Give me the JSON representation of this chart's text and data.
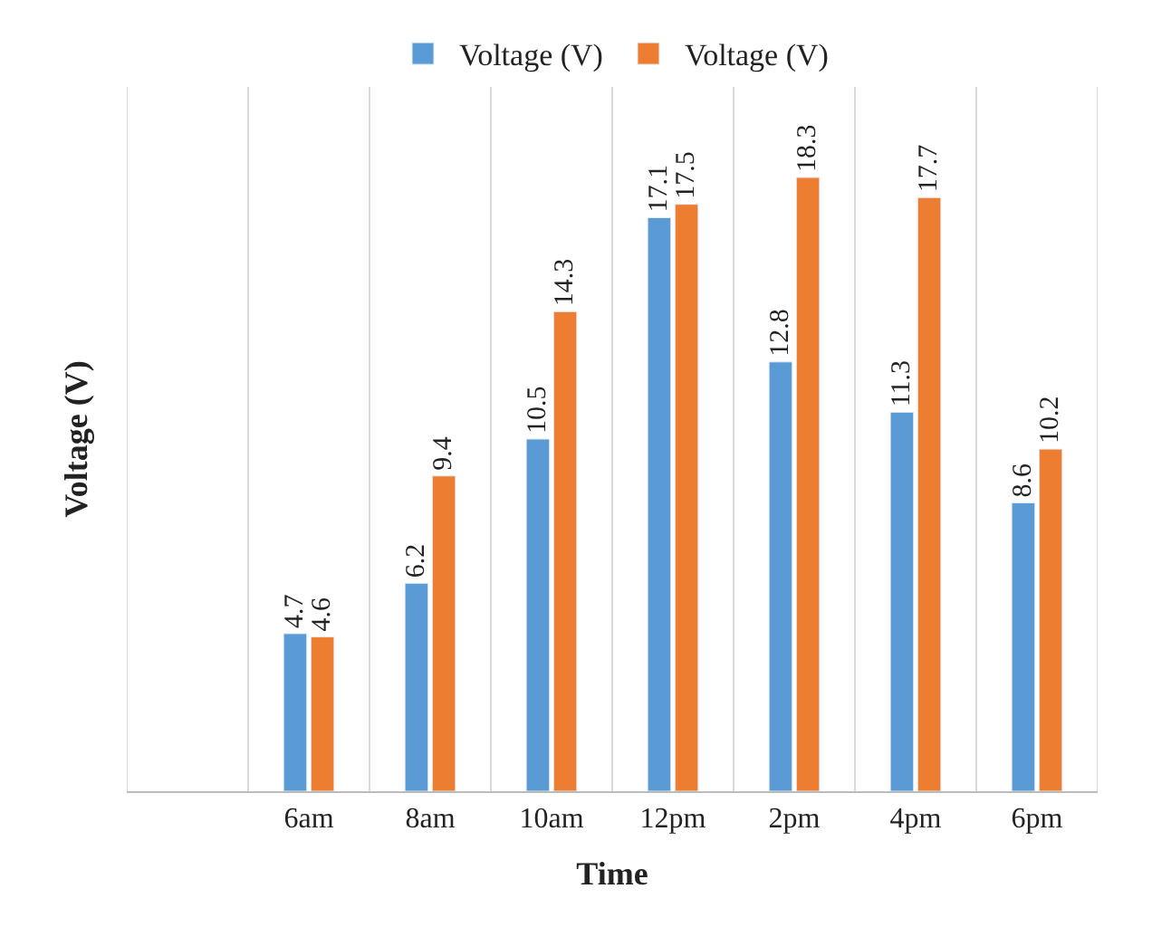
{
  "chart_data": {
    "type": "bar",
    "xlabel": "Time",
    "ylabel": "Voltage (V)",
    "categories": [
      null,
      "6am",
      "8am",
      "10am",
      "12pm",
      "2pm",
      "4pm",
      "6pm"
    ],
    "series": [
      {
        "name": "Voltage (V)",
        "color": "#5b9bd5",
        "values": [
          null,
          4.7,
          6.2,
          10.5,
          17.1,
          12.8,
          11.3,
          8.6
        ]
      },
      {
        "name": "Voltage (V)",
        "color": "#ed7d31",
        "values": [
          null,
          4.6,
          9.4,
          14.3,
          17.5,
          18.3,
          17.7,
          10.2
        ]
      }
    ],
    "ylim": [
      0,
      21
    ],
    "data_labels": true,
    "grid": "x",
    "legend": "top",
    "tick_labels": "x"
  }
}
